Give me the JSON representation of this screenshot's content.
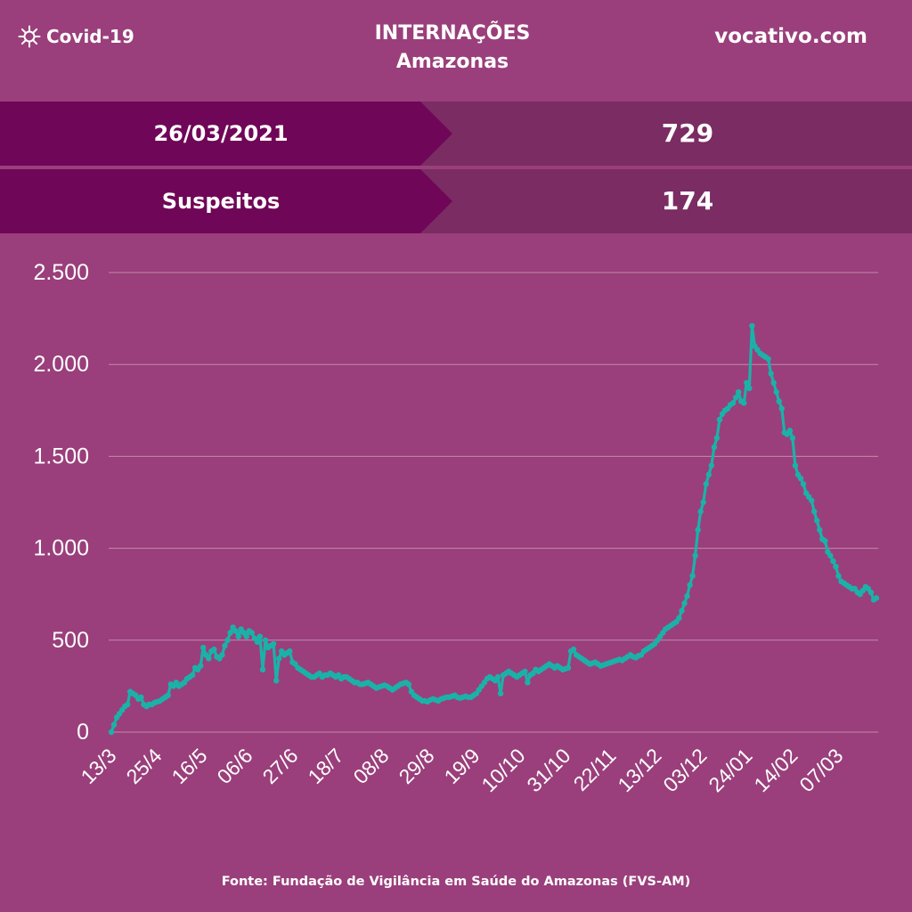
{
  "header": {
    "brand_label": "Covid-19",
    "brand_icon": "virus-icon",
    "title_line1": "INTERNAÇÕES",
    "title_line2": "Amazonas",
    "site": "vocativo.com"
  },
  "summary": [
    {
      "label": "26/03/2021",
      "value": "729"
    },
    {
      "label": "Suspeitos",
      "value": "174"
    }
  ],
  "colors": {
    "background": "#9a3f7b",
    "band_left": "#700657",
    "band_right": "#7a2c63",
    "line": "#1ab2a8",
    "grid": "#c08aae"
  },
  "chart_data": {
    "type": "line",
    "ylim": [
      0,
      2500
    ],
    "y_ticks": [
      {
        "value": 2500,
        "label": "2.500"
      },
      {
        "value": 2000,
        "label": "2.000"
      },
      {
        "value": 1500,
        "label": "1.500"
      },
      {
        "value": 1000,
        "label": "1.000"
      },
      {
        "value": 500,
        "label": "500"
      },
      {
        "value": 0,
        "label": "0"
      }
    ],
    "x_ticks": [
      "13/3",
      "25/4",
      "16/5",
      "06/6",
      "27/6",
      "18/7",
      "08/8",
      "29/8",
      "19/9",
      "10/10",
      "31/10",
      "22/11",
      "13/12",
      "03/12",
      "24/01",
      "14/02",
      "07/03"
    ],
    "series": [
      {
        "values": [
          0,
          40,
          80,
          100,
          120,
          140,
          150,
          220,
          210,
          200,
          180,
          190,
          150,
          140,
          150,
          150,
          160,
          165,
          170,
          180,
          190,
          200,
          260,
          250,
          270,
          250,
          260,
          270,
          290,
          300,
          310,
          350,
          340,
          360,
          460,
          420,
          400,
          440,
          450,
          410,
          400,
          420,
          470,
          500,
          540,
          570,
          550,
          520,
          560,
          540,
          520,
          550,
          540,
          510,
          490,
          520,
          340,
          500,
          460,
          470,
          480,
          280,
          400,
          440,
          420,
          430,
          440,
          380,
          370,
          350,
          340,
          330,
          320,
          310,
          300,
          300,
          310,
          320,
          300,
          310,
          310,
          320,
          310,
          300,
          310,
          290,
          300,
          300,
          290,
          280,
          270,
          270,
          260,
          260,
          265,
          270,
          260,
          250,
          240,
          245,
          250,
          255,
          250,
          240,
          230,
          240,
          250,
          260,
          265,
          270,
          260,
          220,
          200,
          190,
          180,
          170,
          170,
          165,
          175,
          180,
          175,
          170,
          180,
          185,
          190,
          190,
          195,
          200,
          190,
          185,
          190,
          195,
          190,
          190,
          200,
          210,
          230,
          250,
          270,
          290,
          300,
          290,
          280,
          300,
          210,
          310,
          320,
          330,
          320,
          310,
          300,
          310,
          320,
          330,
          270,
          310,
          320,
          340,
          330,
          340,
          350,
          360,
          370,
          360,
          350,
          360,
          350,
          340,
          345,
          350,
          440,
          450,
          420,
          410,
          400,
          390,
          380,
          370,
          375,
          380,
          370,
          360,
          365,
          370,
          375,
          380,
          385,
          390,
          395,
          390,
          400,
          410,
          420,
          410,
          405,
          415,
          420,
          440,
          450,
          460,
          470,
          480,
          500,
          520,
          540,
          560,
          570,
          580,
          590,
          600,
          620,
          660,
          700,
          740,
          800,
          850,
          960,
          1100,
          1200,
          1250,
          1350,
          1400,
          1450,
          1550,
          1600,
          1700,
          1730,
          1750,
          1760,
          1780,
          1790,
          1820,
          1850,
          1800,
          1790,
          1900,
          1870,
          2210,
          2100,
          2080,
          2060,
          2050,
          2040,
          2030,
          1950,
          1900,
          1850,
          1800,
          1760,
          1630,
          1620,
          1640,
          1600,
          1450,
          1400,
          1380,
          1350,
          1300,
          1280,
          1260,
          1200,
          1150,
          1100,
          1050,
          1040,
          980,
          960,
          930,
          900,
          850,
          820,
          810,
          800,
          790,
          780,
          780,
          760,
          750,
          770,
          790,
          780,
          760,
          720,
          729
        ]
      }
    ]
  },
  "source_text": "Fonte: Fundação de Vigilância em Saúde do Amazonas (FVS-AM)"
}
